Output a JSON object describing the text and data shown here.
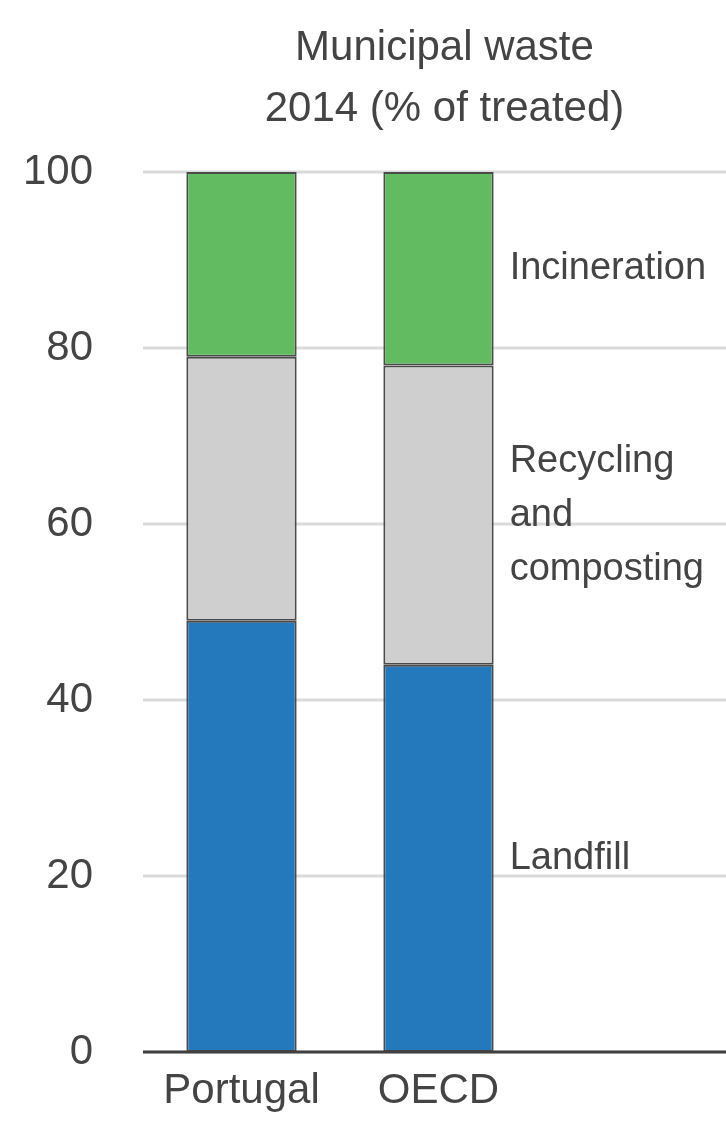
{
  "chart_data": {
    "type": "bar",
    "title": "Municipal waste 2014 (% of treated)",
    "categories": [
      "Portugal",
      "OECD"
    ],
    "series": [
      {
        "name": "Landfill",
        "color": "#2379bb",
        "values": [
          49,
          44
        ]
      },
      {
        "name": "Recycling and composting",
        "color": "#cfcfcf",
        "values": [
          30,
          34
        ]
      },
      {
        "name": "Incineration",
        "color": "#62bb60",
        "values": [
          21,
          22
        ]
      }
    ],
    "stacked": true,
    "ylim": [
      0,
      100
    ],
    "yticks": [
      0,
      20,
      40,
      60,
      80,
      100
    ],
    "grid": "y"
  }
}
